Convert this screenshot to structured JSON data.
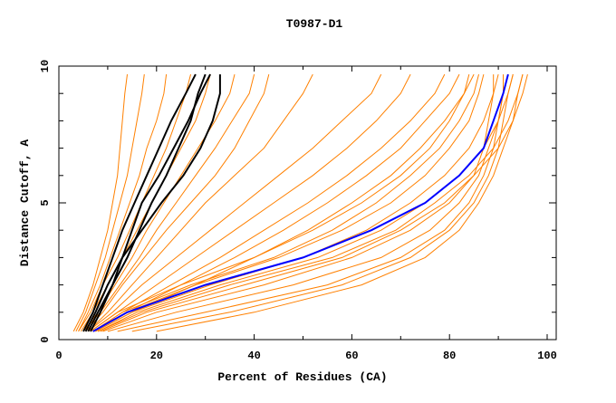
{
  "chart_data": {
    "type": "line",
    "title": "T0987-D1",
    "xlabel": "Percent of Residues (CA)",
    "ylabel": "Distance Cutoff, A",
    "xlim": [
      0,
      102
    ],
    "ylim": [
      0,
      10
    ],
    "xticks": [
      0,
      20,
      40,
      60,
      80,
      100
    ],
    "xtick_labels": [
      "0",
      "20",
      "40",
      "60",
      "80",
      "100"
    ],
    "yticks": [
      0,
      5,
      10
    ],
    "ytick_labels": [
      "0",
      "5",
      "10"
    ],
    "grid": false,
    "y_levels": [
      0.3,
      1,
      2,
      3,
      4,
      5,
      6,
      7,
      8,
      9,
      9.7
    ],
    "colors": {
      "models": "#ff8000",
      "highlight": "#000000",
      "best": "#0000ff"
    },
    "series": [
      {
        "name": "model",
        "group": "models",
        "x": [
          3,
          5,
          7,
          8.5,
          10,
          11,
          12,
          12.5,
          13,
          13.5,
          14
        ]
      },
      {
        "name": "model",
        "group": "models",
        "x": [
          3.5,
          5.5,
          7.5,
          9.5,
          11,
          12.5,
          14,
          15,
          16,
          17,
          17.5
        ]
      },
      {
        "name": "model",
        "group": "models",
        "x": [
          4,
          6,
          8.5,
          10.5,
          12.5,
          14.5,
          16.5,
          18,
          20,
          21.5,
          22
        ]
      },
      {
        "name": "model",
        "group": "models",
        "x": [
          4,
          6.5,
          9,
          12,
          14.5,
          17,
          19.5,
          22,
          24,
          26,
          27
        ]
      },
      {
        "name": "model",
        "group": "models",
        "x": [
          4.5,
          7,
          10,
          13,
          16,
          19,
          22,
          25,
          28,
          30,
          31
        ]
      },
      {
        "name": "model",
        "group": "models",
        "x": [
          5,
          8,
          11.5,
          15,
          18,
          21.5,
          25,
          28.5,
          32,
          35,
          36
        ]
      },
      {
        "name": "model",
        "group": "models",
        "x": [
          5,
          8.5,
          12.5,
          16.5,
          20,
          24,
          28,
          32,
          35.5,
          39,
          40
        ]
      },
      {
        "name": "model",
        "group": "models",
        "x": [
          5.5,
          9,
          13,
          17.5,
          22,
          27,
          32,
          36,
          39,
          42,
          43
        ]
      },
      {
        "name": "model",
        "group": "models",
        "x": [
          6,
          10,
          15,
          20,
          25,
          30,
          36,
          42,
          46,
          50,
          52
        ]
      },
      {
        "name": "model",
        "group": "models",
        "x": [
          6,
          11,
          17,
          24,
          31,
          38,
          45,
          52,
          58,
          64,
          66
        ]
      },
      {
        "name": "model",
        "group": "models",
        "x": [
          6.5,
          12,
          20,
          28,
          36,
          44,
          52,
          59,
          65,
          70,
          72
        ]
      },
      {
        "name": "model",
        "group": "models",
        "x": [
          7,
          13,
          23,
          33,
          42,
          51,
          59,
          66,
          72,
          77,
          79
        ]
      },
      {
        "name": "model",
        "group": "models",
        "x": [
          7,
          14,
          25,
          36,
          46,
          55,
          63,
          70,
          75,
          80,
          82
        ]
      },
      {
        "name": "model",
        "group": "models",
        "x": [
          7.5,
          15,
          28,
          40,
          51,
          60,
          68,
          74,
          79,
          83,
          85
        ]
      },
      {
        "name": "model",
        "group": "models",
        "x": [
          6.5,
          12,
          25,
          40,
          52,
          62,
          70,
          76,
          80,
          83,
          84
        ]
      },
      {
        "name": "model",
        "group": "models",
        "x": [
          7,
          13,
          27,
          44,
          56,
          65,
          72,
          78,
          82,
          85,
          86
        ]
      },
      {
        "name": "model",
        "group": "models",
        "x": [
          7,
          14,
          28,
          45,
          58,
          68,
          75,
          80,
          84,
          86,
          87
        ]
      },
      {
        "name": "model",
        "group": "models",
        "x": [
          7.5,
          15,
          31,
          50,
          63,
          72,
          79,
          84,
          87,
          89,
          90
        ]
      },
      {
        "name": "model",
        "group": "models",
        "x": [
          8,
          16,
          33,
          53,
          66,
          75,
          82,
          87,
          90,
          92,
          93
        ]
      },
      {
        "name": "model",
        "group": "models",
        "x": [
          8,
          17,
          35,
          56,
          69,
          77,
          84,
          89,
          92,
          94,
          95
        ]
      },
      {
        "name": "model",
        "group": "models",
        "x": [
          8.5,
          18,
          38,
          58,
          70,
          79,
          85,
          90,
          93,
          95,
          96
        ]
      },
      {
        "name": "model",
        "group": "models",
        "x": [
          9,
          20,
          42,
          60,
          72,
          80,
          85,
          87,
          88,
          89,
          89
        ]
      },
      {
        "name": "model",
        "group": "models",
        "x": [
          10,
          24,
          48,
          66,
          76,
          82,
          86,
          88,
          90,
          91,
          91
        ]
      },
      {
        "name": "model",
        "group": "models",
        "x": [
          12,
          30,
          55,
          70,
          79,
          84,
          87,
          89,
          90,
          91,
          92
        ]
      },
      {
        "name": "model",
        "group": "models",
        "x": [
          15,
          35,
          58,
          72,
          80,
          85,
          88,
          90,
          91,
          92,
          93
        ]
      },
      {
        "name": "model",
        "group": "models",
        "x": [
          20,
          40,
          62,
          75,
          82,
          86,
          89,
          91,
          93,
          94,
          95
        ]
      },
      {
        "name": "highlight",
        "group": "highlight",
        "x": [
          5,
          7,
          9,
          11,
          13,
          15.5,
          18,
          20.5,
          23,
          26,
          28
        ]
      },
      {
        "name": "highlight",
        "group": "highlight",
        "x": [
          5.5,
          7.5,
          10,
          13,
          15,
          17,
          20.5,
          23.5,
          26.5,
          29,
          31
        ]
      },
      {
        "name": "highlight",
        "group": "highlight",
        "x": [
          6,
          8,
          11,
          14,
          16.5,
          19,
          22,
          24.5,
          27,
          28.5,
          30
        ]
      },
      {
        "name": "highlight",
        "group": "highlight",
        "x": [
          6.5,
          8.5,
          11,
          13,
          17,
          21,
          25.5,
          29,
          31.5,
          33,
          33
        ]
      },
      {
        "name": "best",
        "group": "best",
        "x": [
          7,
          14,
          30,
          50,
          64,
          75,
          82,
          87,
          89,
          91,
          92
        ]
      }
    ]
  }
}
